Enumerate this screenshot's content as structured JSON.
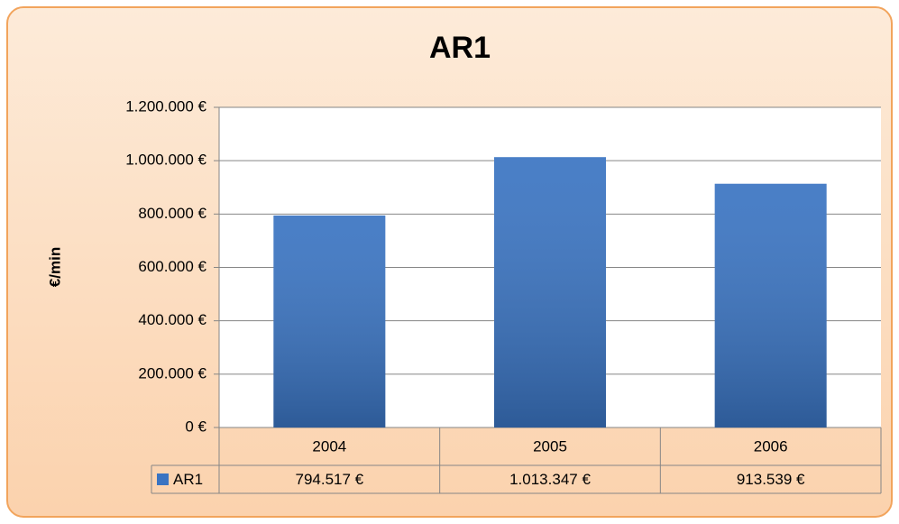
{
  "chart_data": {
    "type": "bar",
    "title": "AR1",
    "y_label": "€/min",
    "categories": [
      "2004",
      "2005",
      "2006"
    ],
    "series": [
      {
        "name": "AR1",
        "color": "#3a74c2",
        "values": [
          794517,
          1013347,
          913539
        ],
        "value_labels": [
          "794.517 €",
          "1.013.347 €",
          "913.539 €"
        ]
      }
    ],
    "ylim": [
      0,
      1200000
    ],
    "yticks": [
      {
        "value": 0,
        "label": "0 €"
      },
      {
        "value": 200000,
        "label": "200.000 €"
      },
      {
        "value": 400000,
        "label": "400.000 €"
      },
      {
        "value": 600000,
        "label": "600.000 €"
      },
      {
        "value": 800000,
        "label": "800.000 €"
      },
      {
        "value": 1000000,
        "label": "1.000.000 €"
      },
      {
        "value": 1200000,
        "label": "1.200.000 €"
      }
    ],
    "grid": true
  }
}
